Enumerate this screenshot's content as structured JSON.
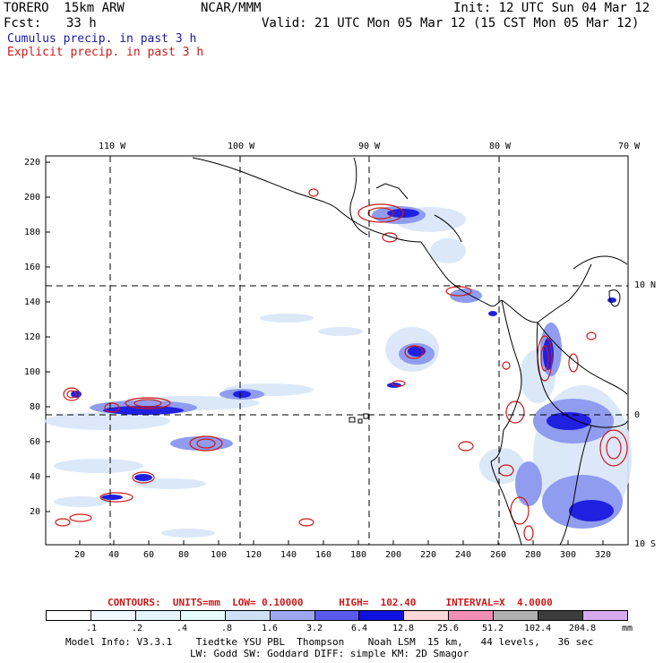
{
  "header": {
    "model": "TORERO  15km ARW",
    "org": "NCAR/MMM",
    "init": "Init: 12 UTC Sun 04 Mar 12",
    "fcst_label": "Fcst:",
    "fcst_hours": "33 h",
    "valid": "Valid: 21 UTC Mon 05 Mar 12 (15 CST Mon 05 Mar 12)",
    "line_cumulus": "Cumulus precip. in past 3 h",
    "line_explicit": "Explicit precip. in past 3 h",
    "cumulus_color": "#1a1aa8",
    "explicit_color": "#d01818"
  },
  "map": {
    "lon_labels": [
      "110 W",
      "100 W",
      "90 W",
      "80 W",
      "70 W"
    ],
    "lat_labels": [
      "10 N",
      "0",
      "10 S"
    ],
    "y_ticks": [
      "220",
      "200",
      "180",
      "160",
      "140",
      "120",
      "100",
      "80",
      "60",
      "40",
      "20"
    ],
    "x_ticks": [
      "20",
      "40",
      "60",
      "80",
      "100",
      "120",
      "140",
      "160",
      "180",
      "200",
      "220",
      "240",
      "260",
      "280",
      "300",
      "320"
    ],
    "grid_lines": "dashed"
  },
  "contour_info": {
    "text": "CONTOURS:  UNITS=mm  LOW= 0.10000      HIGH=  102.40     INTERVAL=X  4.0000",
    "color": "#d01818"
  },
  "colorbar": {
    "labels": [
      ".1",
      ".2",
      ".4",
      ".8",
      "1.6",
      "3.2",
      "6.4",
      "12.8",
      "25.6",
      "51.2",
      "102.4",
      "204.8"
    ],
    "unit": "mm",
    "colors": [
      "#ffffff",
      "#f0f8ff",
      "#e4f4fc",
      "#e6fbfb",
      "#cfe0f6",
      "#9fa8ee",
      "#5a5aee",
      "#1010e0",
      "#fcd7d7",
      "#f08fb2",
      "#b0b0b0",
      "#3c3c3c",
      "#d7a9ee"
    ]
  },
  "footer": {
    "line1": "Model Info: V3.3.1    Tiedtke YSU PBL  Thompson    Noah LSM  15 km,   44 levels,   36 sec",
    "line2": "LW: Godd SW: Goddard DIFF: simple KM: 2D Smagor"
  }
}
